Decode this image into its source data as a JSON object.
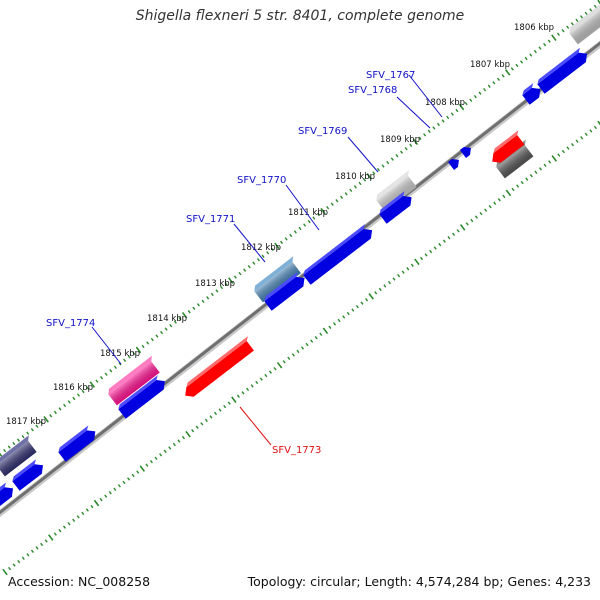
{
  "title": "Shigella flexneri 5 str. 8401, complete genome",
  "footer": {
    "accession": "Accession: NC_008258",
    "summary": "Topology: circular; Length: 4,574,284 bp; Genes: 4,233"
  },
  "colors": {
    "backbone": "#7a7a7a",
    "tick": "#2a8a2a",
    "label_plus": "#1010c8",
    "label_minus": "#e01010",
    "leader_plus": "#1010c8",
    "leader_minus": "#e01010"
  },
  "scale": {
    "unit": "kbp",
    "labels": [
      "1806 kbp",
      "1807 kbp",
      "1808 kbp",
      "1809 kbp",
      "1810 kbp",
      "1811 kbp",
      "1812 kbp",
      "1813 kbp",
      "1814 kbp",
      "1815 kbp",
      "1816 kbp",
      "1817 kbp"
    ]
  },
  "genes": [
    {
      "name": "SFV_1767",
      "strand": "plus",
      "color": "#0000e0",
      "labeled": true
    },
    {
      "name": "SFV_1768",
      "strand": "plus",
      "color": "#0000e0",
      "labeled": true
    },
    {
      "name": "SFV_1769",
      "strand": "plus",
      "color": "#c8c8c8",
      "labeled": true
    },
    {
      "name": "SFV_1770",
      "strand": "plus",
      "color": "#0000e0",
      "labeled": true
    },
    {
      "name": "SFV_1771",
      "strand": "plus",
      "color": "#4682b4",
      "labeled": true
    },
    {
      "name": "SFV_1773",
      "strand": "minus",
      "color": "#ff0000",
      "labeled": true
    },
    {
      "name": "SFV_1774",
      "strand": "plus",
      "color": "#ff1493",
      "labeled": true
    }
  ]
}
